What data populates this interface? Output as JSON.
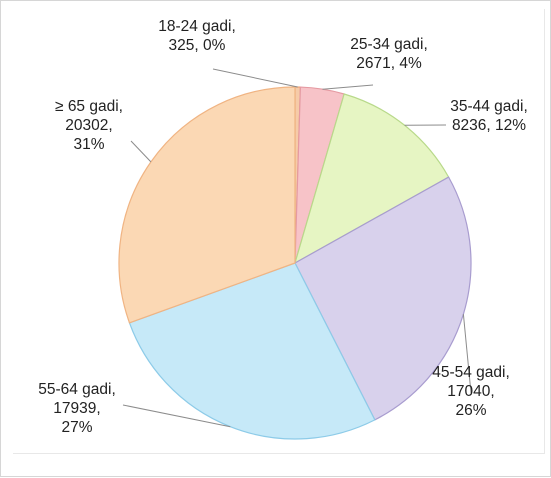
{
  "chart_data": {
    "type": "pie",
    "title": "",
    "unit": "",
    "start_angle_deg": 0,
    "direction": "clockwise",
    "slices": [
      {
        "label_lines": [
          "18-24 gadi,",
          "325, 0%"
        ],
        "category": "18-24 gadi",
        "value": 325,
        "percent": "0%",
        "color": "#f6cba8"
      },
      {
        "label_lines": [
          "25-34 gadi,",
          "2671, 4%"
        ],
        "category": "25-34 gadi",
        "value": 2671,
        "percent": "4%",
        "color": "#f7c3c8"
      },
      {
        "label_lines": [
          "35-44 gadi,",
          "8236, 12%"
        ],
        "category": "35-44 gadi",
        "value": 8236,
        "percent": "12%",
        "color": "#e6f5c3"
      },
      {
        "label_lines": [
          "45-54 gadi,",
          "17040,",
          "26%"
        ],
        "category": "45-54 gadi",
        "value": 17040,
        "percent": "26%",
        "color": "#d8d1ec"
      },
      {
        "label_lines": [
          "55-64 gadi,",
          "17939,",
          "27%"
        ],
        "category": "55-64 gadi",
        "value": 17939,
        "percent": "27%",
        "color": "#c6e9f8"
      },
      {
        "label_lines": [
          "≥ 65 gadi,",
          "20302,",
          "31%"
        ],
        "category": "≥ 65 gadi",
        "value": 20302,
        "percent": "31%",
        "color": "#fbd8b4"
      }
    ],
    "slice_edge_colors": [
      "#e8a070",
      "#e59aa2",
      "#b8d98a",
      "#a89ccf",
      "#8dcbe8",
      "#f0b483"
    ],
    "leader_line_color": "#8c8c8c",
    "legend": "none",
    "grid": false
  }
}
